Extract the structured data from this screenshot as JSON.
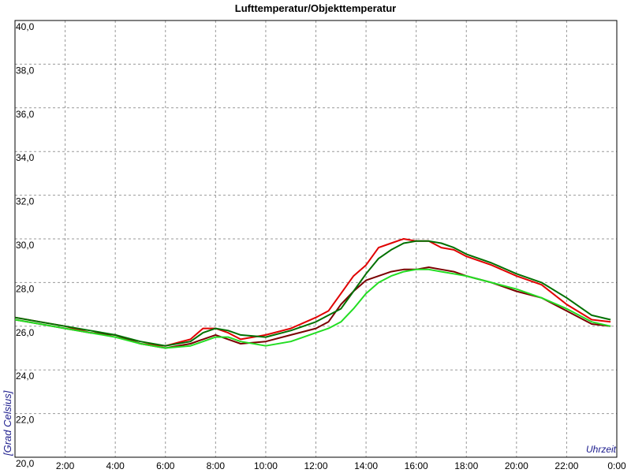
{
  "chart_data": {
    "type": "line",
    "title": "Lufttemperatur/Objekttemperatur",
    "y_label": "[Grad Celsius]",
    "x_label": "Uhrzeit",
    "x": [
      0,
      1,
      2,
      3,
      4,
      5,
      6,
      7,
      7.5,
      8,
      8.5,
      9,
      10,
      11,
      12,
      12.5,
      13,
      13.5,
      14,
      14.5,
      15,
      15.5,
      16,
      16.5,
      17,
      17.5,
      18,
      19,
      20,
      21,
      22,
      23,
      23.75
    ],
    "series": [
      {
        "color": "#e00000",
        "values": [
          26.4,
          26.2,
          26.0,
          25.7,
          25.6,
          25.2,
          25.1,
          25.4,
          25.9,
          25.9,
          25.7,
          25.4,
          25.6,
          25.9,
          26.4,
          26.7,
          27.5,
          28.3,
          28.8,
          29.6,
          29.8,
          30.0,
          29.9,
          29.9,
          29.6,
          29.5,
          29.2,
          28.8,
          28.3,
          27.9,
          27.0,
          26.3,
          26.2
        ]
      },
      {
        "color": "#7a0000",
        "values": [
          26.3,
          26.1,
          25.9,
          25.7,
          25.6,
          25.2,
          25.0,
          25.2,
          25.4,
          25.6,
          25.4,
          25.2,
          25.3,
          25.6,
          25.9,
          26.2,
          27.0,
          27.6,
          28.1,
          28.3,
          28.5,
          28.6,
          28.6,
          28.7,
          28.6,
          28.5,
          28.3,
          28.0,
          27.6,
          27.3,
          26.7,
          26.1,
          26.0
        ]
      },
      {
        "color": "#007000",
        "values": [
          26.4,
          26.2,
          26.0,
          25.8,
          25.6,
          25.3,
          25.1,
          25.3,
          25.7,
          25.9,
          25.8,
          25.6,
          25.5,
          25.8,
          26.2,
          26.5,
          26.8,
          27.6,
          28.4,
          29.1,
          29.5,
          29.8,
          29.9,
          29.9,
          29.8,
          29.6,
          29.3,
          28.9,
          28.4,
          28.0,
          27.3,
          26.5,
          26.3
        ]
      },
      {
        "color": "#22dd22",
        "values": [
          26.3,
          26.1,
          25.9,
          25.7,
          25.5,
          25.2,
          25.0,
          25.1,
          25.3,
          25.5,
          25.5,
          25.3,
          25.1,
          25.3,
          25.7,
          25.9,
          26.2,
          26.8,
          27.5,
          28.0,
          28.3,
          28.5,
          28.6,
          28.6,
          28.5,
          28.4,
          28.3,
          28.0,
          27.7,
          27.3,
          26.8,
          26.2,
          26.0
        ]
      }
    ],
    "xlim": [
      0,
      24
    ],
    "xticks": [
      {
        "value": 2,
        "label": "2:00"
      },
      {
        "value": 4,
        "label": "4:00"
      },
      {
        "value": 6,
        "label": "6:00"
      },
      {
        "value": 8,
        "label": "8:00"
      },
      {
        "value": 10,
        "label": "10:00"
      },
      {
        "value": 12,
        "label": "12:00"
      },
      {
        "value": 14,
        "label": "14:00"
      },
      {
        "value": 16,
        "label": "16:00"
      },
      {
        "value": 18,
        "label": "18:00"
      },
      {
        "value": 20,
        "label": "20:00"
      },
      {
        "value": 22,
        "label": "22:00"
      },
      {
        "value": 24,
        "label": "0:00"
      }
    ],
    "ylim": [
      20,
      40
    ],
    "yticks": [
      {
        "value": 20,
        "label": "20,0"
      },
      {
        "value": 22,
        "label": "22,0"
      },
      {
        "value": 24,
        "label": "24,0"
      },
      {
        "value": 26,
        "label": "26,0"
      },
      {
        "value": 28,
        "label": "28,0"
      },
      {
        "value": 30,
        "label": "30,0"
      },
      {
        "value": 32,
        "label": "32,0"
      },
      {
        "value": 34,
        "label": "34,0"
      },
      {
        "value": 36,
        "label": "36,0"
      },
      {
        "value": 38,
        "label": "38,0"
      },
      {
        "value": 40,
        "label": "40,0"
      }
    ],
    "grid": true
  }
}
